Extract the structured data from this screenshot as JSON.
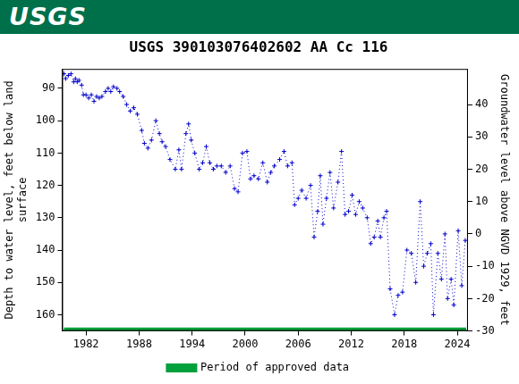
{
  "header": "USGS",
  "chart_data": {
    "type": "line",
    "title": "USGS 390103076402602 AA Cc 116",
    "y_label": [
      "Depth to water level, feet below land",
      "surface"
    ],
    "y2_label": "Groundwater level above NGVD 1929, feet",
    "xlim": [
      1979.3,
      2025.2
    ],
    "xticks": [
      1982,
      1988,
      1994,
      2000,
      2006,
      2012,
      2018,
      2024
    ],
    "ylim": [
      165,
      84
    ],
    "yticks": [
      90,
      100,
      110,
      120,
      130,
      140,
      150,
      160
    ],
    "y2lim": [
      -30,
      51
    ],
    "y2ticks": [
      -30,
      -20,
      -10,
      0,
      10,
      20,
      30,
      40
    ],
    "grid": false,
    "legend": "bottom",
    "series": [
      {
        "color": "#0000cc",
        "marker": "plus",
        "line_style": "dotted",
        "x": [
          1979.5,
          1979.7,
          1980.0,
          1980.3,
          1980.6,
          1980.8,
          1981.0,
          1981.2,
          1981.5,
          1981.7,
          1982.0,
          1982.3,
          1982.6,
          1982.9,
          1983.2,
          1983.5,
          1983.8,
          1984.2,
          1984.5,
          1984.8,
          1985.1,
          1985.5,
          1985.8,
          1986.2,
          1986.6,
          1987.0,
          1987.4,
          1987.8,
          1988.3,
          1988.6,
          1989.0,
          1989.4,
          1989.9,
          1990.3,
          1990.6,
          1991.0,
          1991.5,
          1992.1,
          1992.5,
          1992.8,
          1993.3,
          1993.6,
          1993.9,
          1994.3,
          1994.8,
          1995.2,
          1995.6,
          1996.0,
          1996.4,
          1996.8,
          1997.3,
          1997.8,
          1998.3,
          1998.8,
          1999.2,
          1999.7,
          2000.2,
          2000.6,
          2001.0,
          2001.5,
          2002.0,
          2002.5,
          2002.9,
          2003.3,
          2003.9,
          2004.4,
          2004.8,
          2005.3,
          2005.6,
          2006.0,
          2006.4,
          2006.9,
          2007.4,
          2007.8,
          2008.2,
          2008.5,
          2008.8,
          2009.2,
          2009.6,
          2010.0,
          2010.5,
          2010.9,
          2011.3,
          2011.7,
          2012.1,
          2012.5,
          2012.9,
          2013.3,
          2013.8,
          2014.2,
          2014.6,
          2015.0,
          2015.3,
          2015.7,
          2016.0,
          2016.4,
          2016.9,
          2017.3,
          2017.8,
          2018.3,
          2018.8,
          2019.3,
          2019.8,
          2020.2,
          2020.6,
          2021.0,
          2021.3,
          2021.8,
          2022.2,
          2022.6,
          2022.9,
          2023.3,
          2023.6,
          2024.1,
          2024.5,
          2024.9
        ],
        "values": [
          85.5,
          87,
          86,
          85.5,
          88,
          87,
          88,
          87.5,
          89,
          92,
          92,
          93,
          92,
          94,
          92.5,
          93,
          92.5,
          91,
          90,
          91,
          89.5,
          90,
          91,
          92.5,
          95,
          97,
          96,
          98,
          103,
          107,
          108.5,
          106,
          100,
          104,
          106.5,
          108,
          112,
          115,
          109,
          115,
          104,
          101,
          106,
          110,
          115,
          113,
          108,
          113,
          115,
          114,
          114,
          116,
          114,
          121,
          122,
          110,
          109.5,
          118,
          117,
          118,
          113,
          119,
          116,
          114,
          112,
          109.5,
          114,
          113,
          126,
          124,
          121.5,
          124,
          120,
          136,
          128,
          117,
          132,
          124,
          116,
          127,
          119,
          109.5,
          129,
          128,
          123,
          129,
          125,
          127,
          130,
          138,
          136,
          131,
          136,
          130,
          128,
          152,
          160,
          154,
          153,
          140,
          141,
          150,
          125,
          145,
          141,
          138,
          160,
          141,
          149,
          135,
          155,
          149,
          157,
          134,
          151,
          137
        ]
      },
      {
        "name": "Period of approved data",
        "color": "#00a03c",
        "marker": "none",
        "line_style": "solid",
        "x": [
          1979.5,
          2025.0
        ],
        "values": [
          164.6,
          164.6
        ]
      }
    ]
  }
}
